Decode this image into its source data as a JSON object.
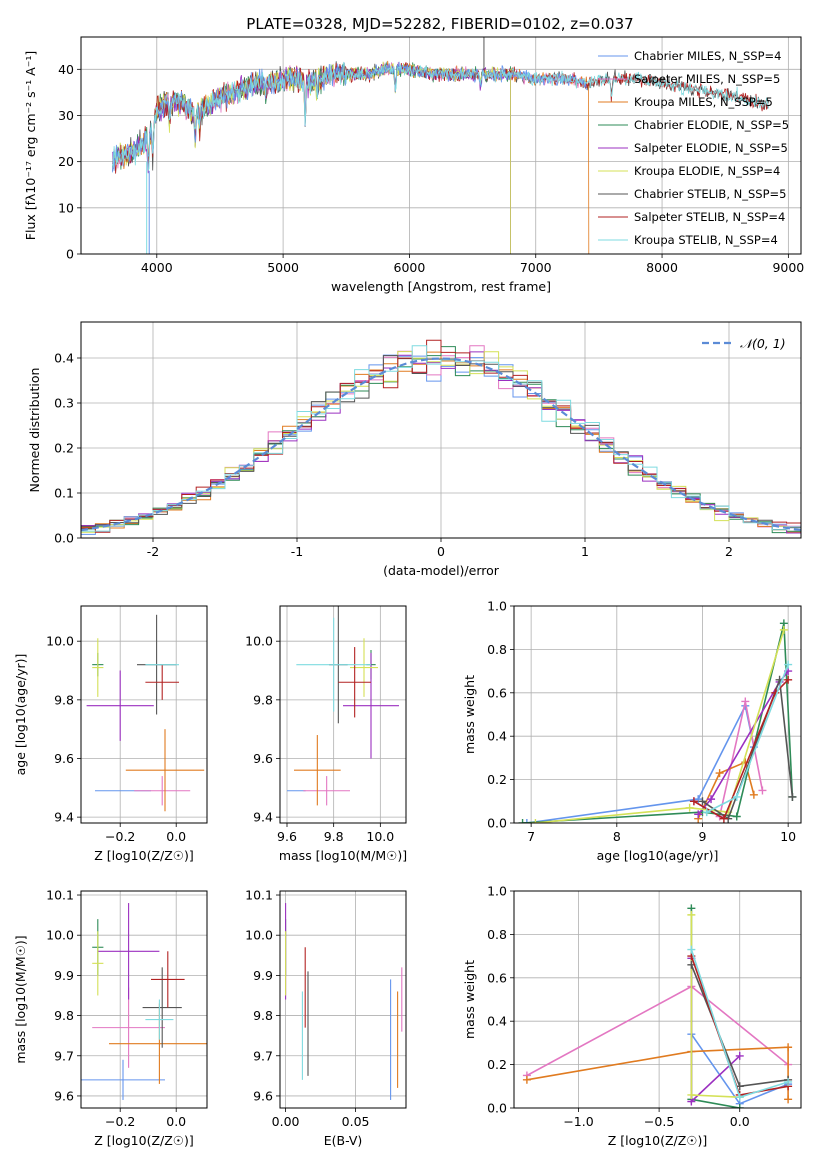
{
  "title": "PLATE=0328, MJD=52282, FIBERID=0102, z=0.037",
  "colors": {
    "Chabrier MILES": "#6495ed",
    "Salpeter MILES": "#e377c2",
    "Kroupa MILES": "#e07b20",
    "Chabrier ELODIE": "#2e8b57",
    "Salpeter ELODIE": "#9b30c0",
    "Kroupa ELODIE": "#d4e157",
    "Chabrier STELIB": "#555555",
    "Salpeter STELIB": "#b22222",
    "Kroupa STELIB": "#7fdbe0"
  },
  "chart_data": [
    {
      "id": "spectrum",
      "type": "line",
      "xlabel": "wavelength [Angstrom, rest frame]",
      "ylabel": "Flux [fλ10⁻¹⁷ erg cm⁻² s⁻¹ A⁻¹]",
      "xlim": [
        3400,
        9100
      ],
      "ylim": [
        0,
        47
      ],
      "xticks": [
        4000,
        5000,
        6000,
        7000,
        8000,
        9000
      ],
      "yticks": [
        0,
        10,
        20,
        30,
        40
      ],
      "legend_position": "top-right",
      "legend": [
        "Chabrier MILES, N_SSP=4",
        "Salpeter MILES, N_SSP=5",
        "Kroupa MILES, N_SSP=5",
        "Chabrier ELODIE, N_SSP=5",
        "Salpeter ELODIE, N_SSP=5",
        "Kroupa ELODIE, N_SSP=4",
        "Chabrier STELIB, N_SSP=5",
        "Salpeter STELIB, N_SSP=4",
        "Kroupa STELIB, N_SSP=4"
      ],
      "continuum": {
        "x": [
          3650,
          3700,
          3800,
          3900,
          3950,
          4000,
          4100,
          4200,
          4300,
          4400,
          4500,
          4600,
          4700,
          4800,
          4900,
          5000,
          5100,
          5200,
          5300,
          5400,
          5500,
          5600,
          5700,
          5800,
          5900,
          6000,
          6200,
          6400,
          6600,
          6800,
          7000,
          7200,
          7400,
          7600,
          7800,
          8000,
          8200,
          8400,
          8600,
          8850
        ],
        "y": [
          20,
          21,
          22,
          24,
          26,
          31,
          33,
          33,
          30,
          32,
          34,
          35,
          36,
          37,
          37,
          38,
          38,
          37,
          38,
          39,
          39,
          39,
          39,
          40,
          40,
          40,
          39,
          39,
          39,
          39,
          38,
          38,
          37,
          38,
          38,
          37,
          36,
          35,
          34,
          32
        ]
      }
    },
    {
      "id": "residuals",
      "type": "line",
      "xlabel": "(data-model)/error",
      "ylabel": "Normed distribution",
      "xlim": [
        -2.5,
        2.5
      ],
      "ylim": [
        0,
        0.48
      ],
      "xticks": [
        -2,
        -1,
        0,
        1,
        2
      ],
      "yticks": [
        0.0,
        0.1,
        0.2,
        0.3,
        0.4
      ],
      "legend": [
        "𝒩(0, 1)"
      ],
      "gaussian": {
        "mu": 0,
        "sigma": 1
      }
    },
    {
      "id": "age-vs-Z",
      "type": "scatter",
      "xlabel": "Z [log10(Z/Z☉)]",
      "ylabel": "age  [log10(age/yr)]",
      "xlim": [
        -0.34,
        0.11
      ],
      "ylim": [
        9.38,
        10.12
      ],
      "xticks": [
        -0.2,
        0.0
      ],
      "xticklabels": [
        "−0.2",
        "0.0"
      ],
      "yticks": [
        9.4,
        9.6,
        9.8,
        10.0
      ],
      "points": [
        {
          "s": "Chabrier MILES",
          "x": -0.19,
          "xe": 0.1,
          "y": 9.49,
          "ye": 0.0
        },
        {
          "s": "Salpeter MILES",
          "x": -0.05,
          "xe": 0.1,
          "y": 9.49,
          "ye": 0.05
        },
        {
          "s": "Kroupa MILES",
          "x": -0.04,
          "xe": 0.14,
          "y": 9.56,
          "ye": 0.14
        },
        {
          "s": "Chabrier ELODIE",
          "x": -0.28,
          "xe": 0.02,
          "y": 9.92,
          "ye": 0.04
        },
        {
          "s": "Salpeter ELODIE",
          "x": -0.2,
          "xe": 0.12,
          "y": 9.78,
          "ye": 0.12
        },
        {
          "s": "Kroupa ELODIE",
          "x": -0.28,
          "xe": 0.02,
          "y": 9.91,
          "ye": 0.1
        },
        {
          "s": "Chabrier STELIB",
          "x": -0.07,
          "xe": 0.07,
          "y": 9.92,
          "ye": 0.17
        },
        {
          "s": "Salpeter STELIB",
          "x": -0.05,
          "xe": 0.06,
          "y": 9.86,
          "ye": 0.06
        },
        {
          "s": "Kroupa STELIB",
          "x": -0.05,
          "xe": 0.06,
          "y": 9.92,
          "ye": 0.0
        }
      ]
    },
    {
      "id": "age-vs-mass",
      "type": "scatter",
      "xlabel": "mass [log10(M/M☉)]",
      "ylabel": "",
      "xlim": [
        9.57,
        10.11
      ],
      "ylim": [
        9.38,
        10.12
      ],
      "xticks": [
        9.6,
        9.8,
        10.0
      ],
      "yticks": [
        9.4,
        9.6,
        9.8,
        10.0
      ],
      "points": [
        {
          "s": "Chabrier MILES",
          "x": 9.64,
          "xe": 0.04,
          "y": 9.49,
          "ye": 0.0
        },
        {
          "s": "Salpeter MILES",
          "x": 9.77,
          "xe": 0.1,
          "y": 9.49,
          "ye": 0.05
        },
        {
          "s": "Kroupa MILES",
          "x": 9.73,
          "xe": 0.1,
          "y": 9.56,
          "ye": 0.12
        },
        {
          "s": "Chabrier ELODIE",
          "x": 9.96,
          "xe": 0.02,
          "y": 9.92,
          "ye": 0.05
        },
        {
          "s": "Salpeter ELODIE",
          "x": 9.96,
          "xe": 0.12,
          "y": 9.78,
          "ye": 0.18
        },
        {
          "s": "Kroupa ELODIE",
          "x": 9.93,
          "xe": 0.06,
          "y": 9.91,
          "ye": 0.1
        },
        {
          "s": "Chabrier STELIB",
          "x": 9.82,
          "xe": 0.04,
          "y": 9.92,
          "ye": 0.2
        },
        {
          "s": "Salpeter STELIB",
          "x": 9.89,
          "xe": 0.07,
          "y": 9.86,
          "ye": 0.12
        },
        {
          "s": "Kroupa STELIB",
          "x": 9.8,
          "xe": 0.16,
          "y": 9.92,
          "ye": 0.16
        }
      ]
    },
    {
      "id": "weight-vs-age",
      "type": "line",
      "xlabel": "age  [log10(age/yr)]",
      "ylabel": "mass weight",
      "xlim": [
        6.8,
        10.15
      ],
      "ylim": [
        0,
        1.0
      ],
      "xticks": [
        7,
        8,
        9,
        10
      ],
      "yticks": [
        0.0,
        0.2,
        0.4,
        0.6,
        0.8,
        1.0
      ],
      "series": [
        {
          "s": "Chabrier MILES",
          "x": [
            6.95,
            8.95,
            9.5,
            9.6
          ],
          "y": [
            0.0,
            0.11,
            0.54,
            0.35
          ]
        },
        {
          "s": "Salpeter MILES",
          "x": [
            8.9,
            9.2,
            9.5,
            9.7
          ],
          "y": [
            0.1,
            0.03,
            0.56,
            0.15
          ]
        },
        {
          "s": "Kroupa MILES",
          "x": [
            8.95,
            9.2,
            9.5,
            9.6
          ],
          "y": [
            0.02,
            0.23,
            0.28,
            0.13
          ]
        },
        {
          "s": "Chabrier ELODIE",
          "x": [
            6.9,
            9.0,
            9.4,
            9.95,
            10.05
          ],
          "y": [
            0.0,
            0.05,
            0.03,
            0.92,
            0.12
          ]
        },
        {
          "s": "Salpeter ELODIE",
          "x": [
            8.95,
            9.1,
            9.9,
            10.0
          ],
          "y": [
            0.04,
            0.11,
            0.65,
            0.7
          ]
        },
        {
          "s": "Kroupa ELODIE",
          "x": [
            7.05,
            8.85,
            9.3,
            9.95
          ],
          "y": [
            0.0,
            0.07,
            0.05,
            0.89
          ]
        },
        {
          "s": "Chabrier STELIB",
          "x": [
            9.0,
            9.3,
            9.9,
            10.05
          ],
          "y": [
            0.1,
            0.02,
            0.66,
            0.12
          ]
        },
        {
          "s": "Salpeter STELIB",
          "x": [
            8.9,
            9.25,
            9.85,
            10.0
          ],
          "y": [
            0.1,
            0.02,
            0.6,
            0.66
          ]
        },
        {
          "s": "Kroupa STELIB",
          "x": [
            9.05,
            9.4,
            10.0
          ],
          "y": [
            0.05,
            0.12,
            0.73
          ]
        }
      ]
    },
    {
      "id": "mass-vs-Z",
      "type": "scatter",
      "xlabel": "Z [log10(Z/Z☉)]",
      "ylabel": "mass [log10(M/M☉)]",
      "xlim": [
        -0.34,
        0.11
      ],
      "ylim": [
        9.57,
        10.11
      ],
      "xticks": [
        -0.2,
        0.0
      ],
      "xticklabels": [
        "−0.2",
        "0.0"
      ],
      "yticks": [
        9.6,
        9.7,
        9.8,
        9.9,
        10.0,
        10.1
      ],
      "points": [
        {
          "s": "Chabrier MILES",
          "x": -0.19,
          "xe": 0.15,
          "y": 9.64,
          "ye": 0.05
        },
        {
          "s": "Salpeter MILES",
          "x": -0.17,
          "xe": 0.13,
          "y": 9.77,
          "ye": 0.1
        },
        {
          "s": "Kroupa MILES",
          "x": -0.06,
          "xe": 0.18,
          "y": 9.73,
          "ye": 0.1
        },
        {
          "s": "Chabrier ELODIE",
          "x": -0.28,
          "xe": 0.02,
          "y": 9.97,
          "ye": 0.07
        },
        {
          "s": "Salpeter ELODIE",
          "x": -0.17,
          "xe": 0.11,
          "y": 9.96,
          "ye": 0.12
        },
        {
          "s": "Kroupa ELODIE",
          "x": -0.28,
          "xe": 0.02,
          "y": 9.93,
          "ye": 0.08
        },
        {
          "s": "Chabrier STELIB",
          "x": -0.05,
          "xe": 0.07,
          "y": 9.82,
          "ye": 0.1
        },
        {
          "s": "Salpeter STELIB",
          "x": -0.03,
          "xe": 0.06,
          "y": 9.89,
          "ye": 0.07
        },
        {
          "s": "Kroupa STELIB",
          "x": -0.06,
          "xe": 0.05,
          "y": 9.79,
          "ye": 0.05
        }
      ]
    },
    {
      "id": "mass-vs-EBV",
      "type": "scatter",
      "xlabel": "E(B-V)",
      "ylabel": "",
      "xlim": [
        -0.004,
        0.086
      ],
      "ylim": [
        9.57,
        10.11
      ],
      "xticks": [
        0.0,
        0.05
      ],
      "xticklabels": [
        "0.00",
        "0.05"
      ],
      "yticks": [
        9.6,
        9.7,
        9.8,
        9.9,
        10.0,
        10.1
      ],
      "points": [
        {
          "s": "Chabrier MILES",
          "x": 0.075,
          "xe": 0,
          "y": 9.74,
          "ye": 0.15
        },
        {
          "s": "Salpeter MILES",
          "x": 0.083,
          "xe": 0,
          "y": 9.84,
          "ye": 0.08
        },
        {
          "s": "Kroupa MILES",
          "x": 0.08,
          "xe": 0,
          "y": 9.74,
          "ye": 0.12
        },
        {
          "s": "Chabrier ELODIE",
          "x": 0.0,
          "xe": 0,
          "y": 9.97,
          "ye": 0.07
        },
        {
          "s": "Salpeter ELODIE",
          "x": 0.0,
          "xe": 0,
          "y": 9.96,
          "ye": 0.12
        },
        {
          "s": "Kroupa ELODIE",
          "x": 0.0,
          "xe": 0,
          "y": 9.93,
          "ye": 0.08
        },
        {
          "s": "Chabrier STELIB",
          "x": 0.016,
          "xe": 0,
          "y": 9.78,
          "ye": 0.13
        },
        {
          "s": "Salpeter STELIB",
          "x": 0.014,
          "xe": 0,
          "y": 9.87,
          "ye": 0.1
        },
        {
          "s": "Kroupa STELIB",
          "x": 0.012,
          "xe": 0,
          "y": 9.75,
          "ye": 0.11
        }
      ]
    },
    {
      "id": "weight-vs-Z",
      "type": "line",
      "xlabel": "Z [log10(Z/Z☉)]",
      "ylabel": "mass weight",
      "xlim": [
        -1.4,
        0.38
      ],
      "ylim": [
        0,
        1.0
      ],
      "xticks": [
        -1.0,
        -0.5,
        0.0
      ],
      "xticklabels": [
        "−1.0",
        "−0.5",
        "0.0"
      ],
      "yticks": [
        0.0,
        0.2,
        0.4,
        0.6,
        0.8,
        1.0
      ],
      "series": [
        {
          "s": "Chabrier MILES",
          "x": [
            -0.3,
            0.0,
            0.3
          ],
          "y": [
            0.34,
            0.02,
            0.11
          ]
        },
        {
          "s": "Salpeter MILES",
          "x": [
            -1.32,
            -0.3,
            0.3
          ],
          "y": [
            0.15,
            0.56,
            0.2
          ]
        },
        {
          "s": "Kroupa MILES",
          "x": [
            -1.32,
            -0.3,
            0.3,
            0.3
          ],
          "y": [
            0.13,
            0.26,
            0.28,
            0.04
          ]
        },
        {
          "s": "Chabrier ELODIE",
          "x": [
            -0.3,
            -0.3,
            0.0
          ],
          "y": [
            0.92,
            0.04,
            0.0
          ]
        },
        {
          "s": "Salpeter ELODIE",
          "x": [
            -0.3,
            -0.3,
            0.0
          ],
          "y": [
            0.69,
            0.03,
            0.24
          ]
        },
        {
          "s": "Kroupa ELODIE",
          "x": [
            -0.3,
            -0.3,
            0.0
          ],
          "y": [
            0.89,
            0.06,
            0.05
          ]
        },
        {
          "s": "Chabrier STELIB",
          "x": [
            -0.3,
            0.0,
            0.3
          ],
          "y": [
            0.66,
            0.1,
            0.13
          ]
        },
        {
          "s": "Salpeter STELIB",
          "x": [
            -0.3,
            0.0,
            0.3
          ],
          "y": [
            0.7,
            0.06,
            0.1
          ]
        },
        {
          "s": "Kroupa STELIB",
          "x": [
            -0.3,
            0.0,
            0.3
          ],
          "y": [
            0.73,
            0.05,
            0.12
          ]
        }
      ]
    }
  ]
}
